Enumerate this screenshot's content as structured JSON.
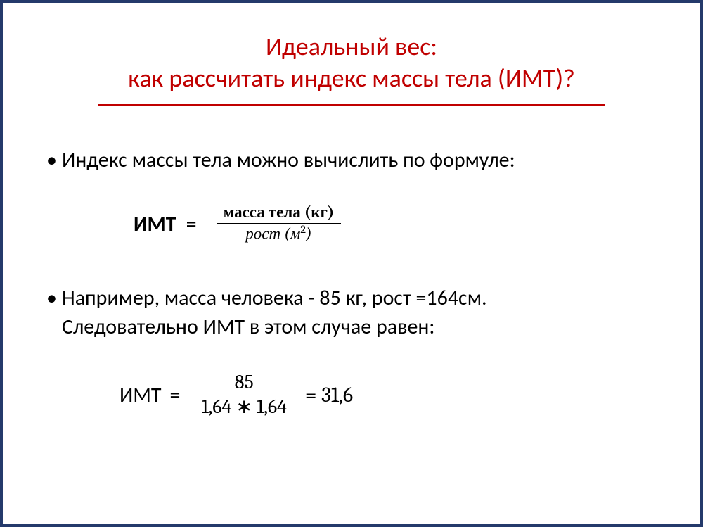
{
  "title": {
    "line1": "Идеальный вес:",
    "line2": "как рассчитать индекс массы тела (ИМТ)?",
    "color": "#c00000",
    "rule_color": "#c00000",
    "fontsize": 36
  },
  "border_color": "#243a6b",
  "body_fontsize": 30,
  "bullets": {
    "b1": "Индекс массы тела можно вычислить по формуле:",
    "b2_line1": "Например, масса человека - 85 кг, рост =164см.",
    "b2_line2": "Следовательно ИМТ в этом случае равен:"
  },
  "formula1": {
    "label": "ИМТ",
    "eq": "=",
    "numerator": "масса тела (кг)",
    "denom_word": "рост",
    "denom_unit_base": "м",
    "denom_unit_exp": "2",
    "numerator_bold": true,
    "denom_italic": true
  },
  "formula2": {
    "label": "ИМТ",
    "eq": "=",
    "numerator": "85",
    "denominator": "1,64 ∗ 1,64",
    "result_eq": "=",
    "result": "31,6"
  }
}
